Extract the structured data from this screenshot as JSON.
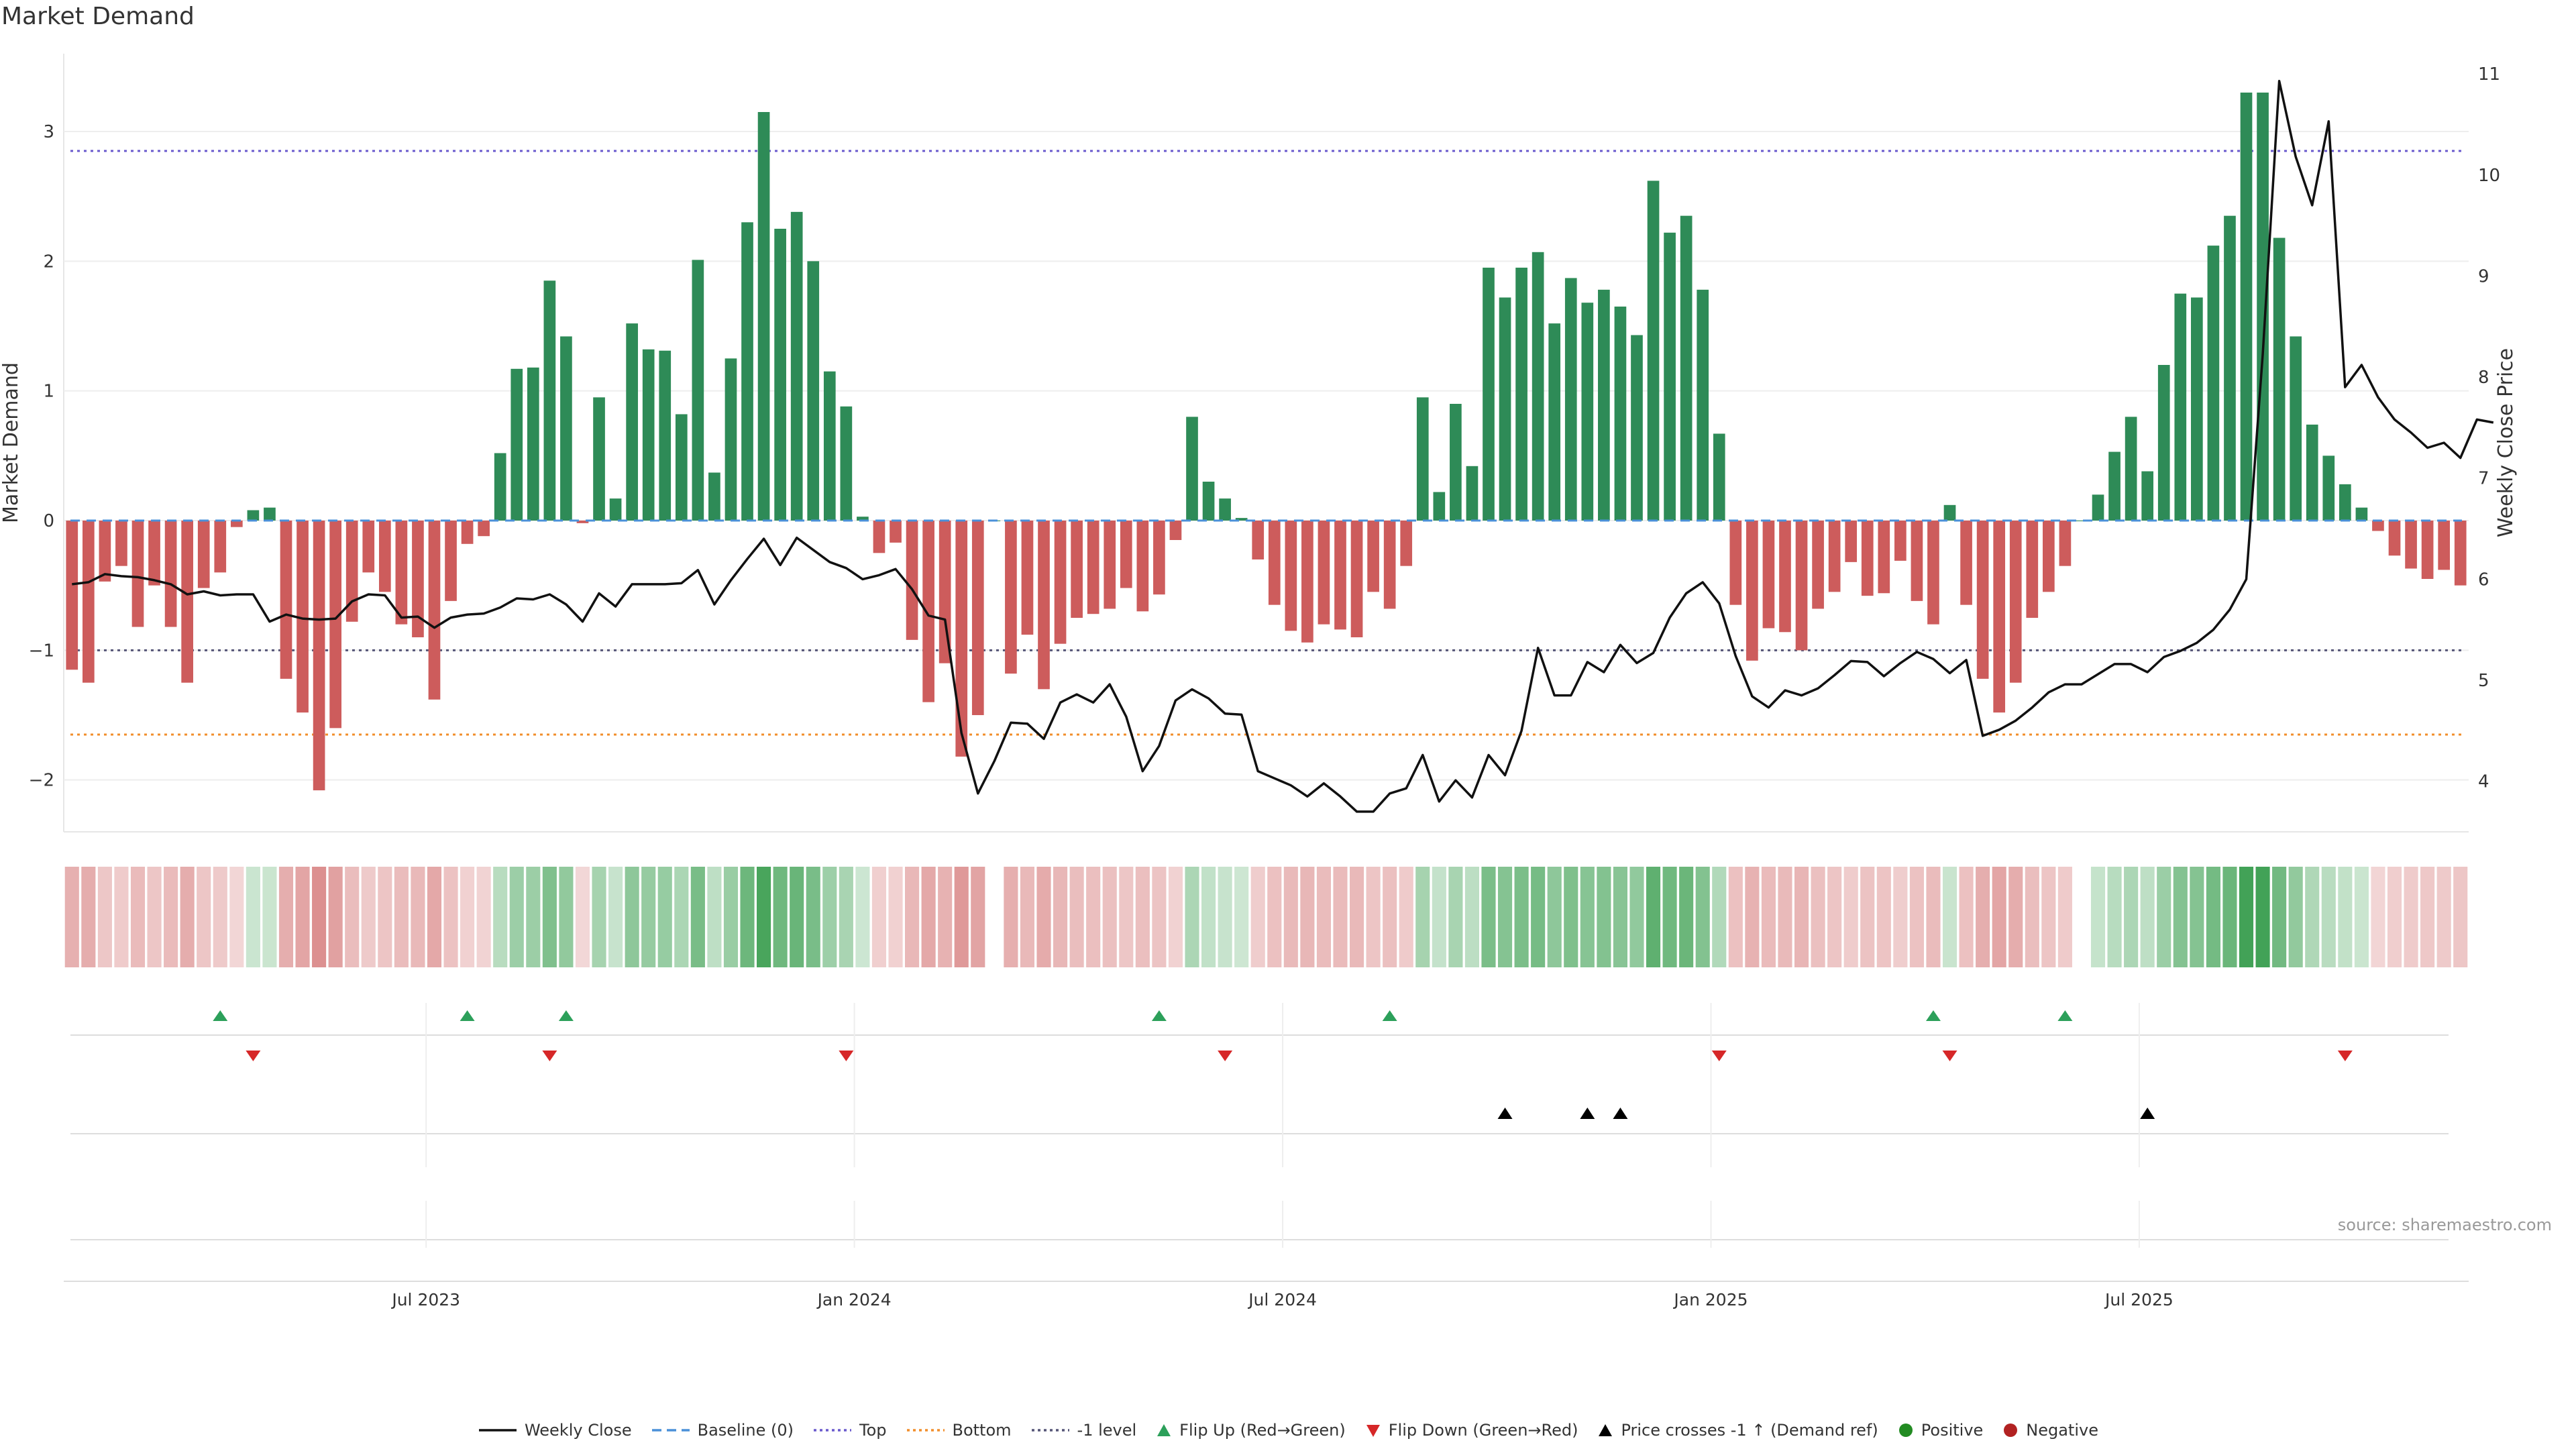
{
  "title": "Market Demand",
  "source": "source: sharemaestro.com",
  "colors": {
    "positive_bar": "#2e8b57",
    "negative_bar": "#cd5c5c",
    "price_line": "#111111",
    "baseline": "#4a90d9",
    "top_line": "#6a5acd",
    "bottom_line": "#f28e2b",
    "minus_one_line": "#555577",
    "flip_up": "#2ca05a",
    "flip_down": "#d62728",
    "cross_marker": "#000000",
    "positive_dot": "#228b22",
    "negative_dot": "#b22222"
  },
  "legend": [
    {
      "label": "Weekly Close",
      "symbol": "line-solid",
      "color": "#111111"
    },
    {
      "label": "Baseline (0)",
      "symbol": "line-dashed",
      "color": "#4a90d9"
    },
    {
      "label": "Top",
      "symbol": "line-dotted",
      "color": "#6a5acd"
    },
    {
      "label": "Bottom",
      "symbol": "line-dotted",
      "color": "#f28e2b"
    },
    {
      "label": "-1 level",
      "symbol": "line-dotted",
      "color": "#555577"
    },
    {
      "label": "Flip Up (Red→Green)",
      "symbol": "triangle-up",
      "color": "#2ca05a"
    },
    {
      "label": "Flip Down (Green→Red)",
      "symbol": "triangle-down",
      "color": "#d62728"
    },
    {
      "label": "Price crosses -1 ↑ (Demand ref)",
      "symbol": "triangle-up",
      "color": "#000000"
    },
    {
      "label": "Positive",
      "symbol": "circle",
      "color": "#228b22"
    },
    {
      "label": "Negative",
      "symbol": "circle",
      "color": "#b22222"
    }
  ],
  "chart_data": {
    "type": "bar",
    "title": "Market Demand",
    "ylabel": "Market Demand",
    "y2label": "Weekly Close Price",
    "ylim": [
      -2.4,
      3.6
    ],
    "y2lim": [
      3.5,
      11.2
    ],
    "yticks": [
      -2,
      -1,
      0,
      1,
      2,
      3
    ],
    "yticklabels": [
      "−2",
      "−1",
      "0",
      "1",
      "2",
      "3"
    ],
    "y2ticks": [
      4,
      5,
      6,
      7,
      8,
      9,
      10,
      11
    ],
    "xtick_positions": [
      22,
      48,
      74,
      100,
      126
    ],
    "xticklabels": [
      "Jul 2023",
      "Jan 2024",
      "Jul 2024",
      "Jan 2025",
      "Jul 2025"
    ],
    "reference_lines": {
      "baseline": 0,
      "top": 2.85,
      "bottom": -1.65,
      "minus_one": -1
    },
    "demand": [
      -1.15,
      -1.25,
      -0.47,
      -0.35,
      -0.82,
      -0.5,
      -0.82,
      -1.25,
      -0.52,
      -0.4,
      -0.05,
      0.08,
      0.1,
      -1.22,
      -1.48,
      -2.08,
      -1.6,
      -0.78,
      -0.4,
      -0.55,
      -0.8,
      -0.9,
      -1.38,
      -0.62,
      -0.18,
      -0.12,
      0.52,
      1.17,
      1.18,
      1.85,
      1.42,
      -0.02,
      0.95,
      0.17,
      1.52,
      1.32,
      1.31,
      0.82,
      2.01,
      0.37,
      1.25,
      2.3,
      3.15,
      2.25,
      2.38,
      2.0,
      1.15,
      0.88,
      0.03,
      -0.25,
      -0.17,
      -0.92,
      -1.4,
      -1.1,
      -1.82,
      -1.5,
      0.0,
      -1.18,
      -0.88,
      -1.3,
      -0.95,
      -0.75,
      -0.72,
      -0.68,
      -0.52,
      -0.7,
      -0.57,
      -0.15,
      0.8,
      0.3,
      0.17,
      0.02,
      -0.3,
      -0.65,
      -0.85,
      -0.94,
      -0.8,
      -0.84,
      -0.9,
      -0.55,
      -0.68,
      -0.35,
      0.95,
      0.22,
      0.9,
      0.42,
      1.95,
      1.72,
      1.95,
      2.07,
      1.52,
      1.87,
      1.68,
      1.78,
      1.65,
      1.43,
      2.62,
      2.22,
      2.35,
      1.78,
      0.67,
      -0.65,
      -1.08,
      -0.83,
      -0.86,
      -1.0,
      -0.68,
      -0.55,
      -0.32,
      -0.58,
      -0.56,
      -0.31,
      -0.62,
      -0.8,
      0.12,
      -0.65,
      -1.22,
      -1.48,
      -1.25,
      -0.75,
      -0.55,
      -0.35,
      0.0,
      0.2,
      0.53,
      0.8,
      0.38,
      1.2,
      1.75,
      1.72,
      2.12,
      2.35,
      3.3,
      3.3,
      2.18,
      1.42,
      0.74,
      0.5,
      0.28,
      0.1,
      -0.08,
      -0.27,
      -0.37,
      -0.45,
      -0.38,
      -0.5
    ],
    "weekly_close": [
      5.95,
      5.97,
      6.05,
      6.03,
      6.02,
      5.99,
      5.95,
      5.85,
      5.88,
      5.84,
      5.85,
      5.85,
      5.58,
      5.65,
      5.61,
      5.6,
      5.61,
      5.78,
      5.85,
      5.84,
      5.62,
      5.63,
      5.52,
      5.62,
      5.65,
      5.66,
      5.72,
      5.81,
      5.8,
      5.85,
      5.75,
      5.58,
      5.86,
      5.73,
      5.95,
      5.95,
      5.95,
      5.96,
      6.09,
      5.75,
      5.99,
      6.2,
      6.4,
      6.14,
      6.41,
      6.29,
      6.17,
      6.11,
      6.0,
      6.04,
      6.1,
      5.9,
      5.64,
      5.6,
      4.48,
      3.88,
      4.2,
      4.58,
      4.57,
      4.42,
      4.78,
      4.86,
      4.78,
      4.96,
      4.64,
      4.1,
      4.35,
      4.8,
      4.91,
      4.82,
      4.67,
      4.66,
      4.1,
      4.03,
      3.96,
      3.85,
      3.98,
      3.85,
      3.7,
      3.7,
      3.88,
      3.93,
      4.26,
      3.8,
      4.01,
      3.84,
      4.26,
      4.06,
      4.5,
      5.32,
      4.85,
      4.85,
      5.18,
      5.08,
      5.35,
      5.17,
      5.27,
      5.62,
      5.86,
      5.97,
      5.76,
      5.24,
      4.84,
      4.73,
      4.9,
      4.85,
      4.92,
      5.05,
      5.19,
      5.18,
      5.04,
      5.17,
      5.28,
      5.21,
      5.07,
      5.2,
      4.45,
      4.51,
      4.6,
      4.73,
      4.88,
      4.96,
      4.96,
      5.06,
      5.16,
      5.16,
      5.08,
      5.23,
      5.29,
      5.37,
      5.5,
      5.7,
      6.0,
      8.23,
      10.93,
      10.18,
      9.7,
      10.53,
      7.9,
      8.12,
      7.8,
      7.58,
      7.45,
      7.3,
      7.35,
      7.2,
      7.58,
      7.55
    ],
    "flip_up_positions": [
      9,
      24,
      30,
      66,
      80,
      113,
      121
    ],
    "flip_down_positions": [
      11,
      29,
      47,
      70,
      100,
      114,
      138
    ],
    "cross_positions": [
      87,
      92,
      94,
      126
    ]
  }
}
